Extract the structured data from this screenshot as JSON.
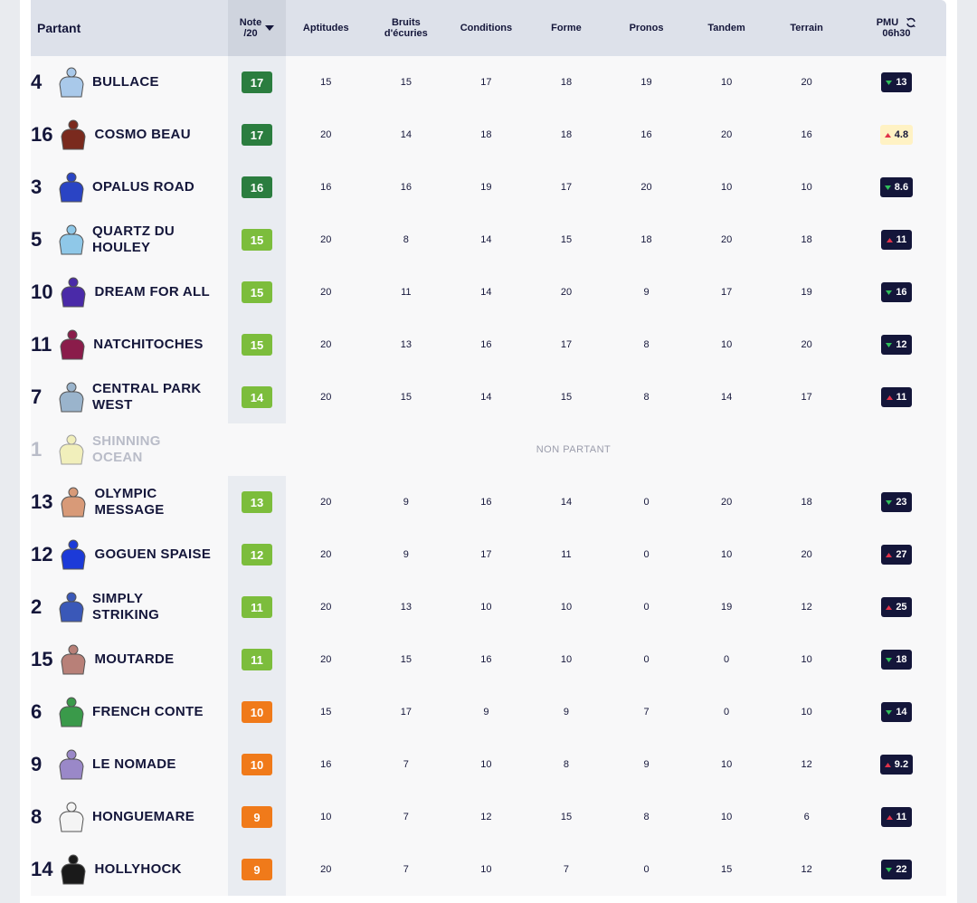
{
  "header": {
    "partant": "Partant",
    "note": [
      "Note",
      "/20"
    ],
    "columns": [
      "Aptitudes",
      "Bruits d'écuries",
      "Conditions",
      "Forme",
      "Pronos",
      "Tandem",
      "Terrain"
    ],
    "pmu": [
      "PMU",
      "06h30"
    ]
  },
  "rows": [
    {
      "number": 4,
      "name": "BULLACE",
      "note": 17,
      "note_color": "#2b7d3f",
      "silk": "#a9c9ea",
      "scores": [
        15,
        15,
        17,
        18,
        19,
        10,
        20
      ],
      "pmu": 13,
      "trend": "down"
    },
    {
      "number": 16,
      "name": "COSMO BEAU",
      "note": 17,
      "note_color": "#2b7d3f",
      "silk": "#7a2a1e",
      "scores": [
        20,
        14,
        18,
        18,
        16,
        20,
        16
      ],
      "pmu": 4.8,
      "trend": "up",
      "pmu_bg": "#fff2c4"
    },
    {
      "number": 3,
      "name": "OPALUS ROAD",
      "note": 16,
      "note_color": "#2b7d3f",
      "silk": "#2a44c4",
      "scores": [
        16,
        16,
        19,
        17,
        20,
        10,
        10
      ],
      "pmu": 8.6,
      "trend": "down"
    },
    {
      "number": 5,
      "name": "QUARTZ DU HOULEY",
      "note": 15,
      "note_color": "#7cbd3c",
      "silk": "#8fc8e8",
      "scores": [
        20,
        8,
        14,
        15,
        18,
        20,
        18
      ],
      "pmu": 11,
      "trend": "up"
    },
    {
      "number": 10,
      "name": "DREAM FOR ALL",
      "note": 15,
      "note_color": "#7cbd3c",
      "silk": "#4a2aa8",
      "scores": [
        20,
        11,
        14,
        20,
        9,
        17,
        19
      ],
      "pmu": 16,
      "trend": "down"
    },
    {
      "number": 11,
      "name": "NATCHITOCHES",
      "note": 15,
      "note_color": "#7cbd3c",
      "silk": "#8a1c4a",
      "scores": [
        20,
        13,
        16,
        17,
        8,
        10,
        20
      ],
      "pmu": 12,
      "trend": "down"
    },
    {
      "number": 7,
      "name": "CENTRAL PARK WEST",
      "note": 14,
      "note_color": "#7cbd3c",
      "silk": "#9ab4cc",
      "scores": [
        20,
        15,
        14,
        15,
        8,
        14,
        17
      ],
      "pmu": 11,
      "trend": "up"
    },
    {
      "number": 1,
      "name": "SHINNING OCEAN",
      "silk": "#ece88a",
      "status": "NON PARTANT"
    },
    {
      "number": 13,
      "name": "OLYMPIC MESSAGE",
      "note": 13,
      "note_color": "#7cbd3c",
      "silk": "#d89a78",
      "scores": [
        20,
        9,
        16,
        14,
        0,
        20,
        18
      ],
      "pmu": 23,
      "trend": "down"
    },
    {
      "number": 12,
      "name": "GOGUEN SPAISE",
      "note": 12,
      "note_color": "#7cbd3c",
      "silk": "#1c3ad8",
      "scores": [
        20,
        9,
        17,
        11,
        0,
        10,
        20
      ],
      "pmu": 27,
      "trend": "up"
    },
    {
      "number": 2,
      "name": "SIMPLY STRIKING",
      "note": 11,
      "note_color": "#7cbd3c",
      "silk": "#3a58b8",
      "scores": [
        20,
        13,
        10,
        10,
        0,
        19,
        12
      ],
      "pmu": 25,
      "trend": "up"
    },
    {
      "number": 15,
      "name": "MOUTARDE",
      "note": 11,
      "note_color": "#7cbd3c",
      "silk": "#b88078",
      "scores": [
        20,
        15,
        16,
        10,
        0,
        0,
        10
      ],
      "pmu": 18,
      "trend": "down"
    },
    {
      "number": 6,
      "name": "FRENCH CONTE",
      "note": 10,
      "note_color": "#f07a1a",
      "silk": "#3a9a4a",
      "scores": [
        15,
        17,
        9,
        9,
        7,
        0,
        10
      ],
      "pmu": 14,
      "trend": "down"
    },
    {
      "number": 9,
      "name": "LE NOMADE",
      "note": 10,
      "note_color": "#f07a1a",
      "silk": "#9a88c8",
      "scores": [
        16,
        7,
        10,
        8,
        9,
        10,
        12
      ],
      "pmu": 9.2,
      "trend": "up"
    },
    {
      "number": 8,
      "name": "HONGUEMARE",
      "note": 9,
      "note_color": "#f07a1a",
      "silk": "#f4f4f4",
      "scores": [
        10,
        7,
        12,
        15,
        8,
        10,
        6
      ],
      "pmu": 11,
      "trend": "up"
    },
    {
      "number": 14,
      "name": "HOLLYHOCK",
      "note": 9,
      "note_color": "#f07a1a",
      "silk": "#1a1a1a",
      "scores": [
        20,
        7,
        10,
        7,
        0,
        15,
        12
      ],
      "pmu": 22,
      "trend": "down"
    }
  ]
}
